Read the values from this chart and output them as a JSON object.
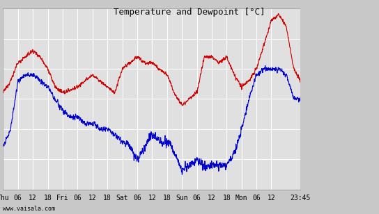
{
  "title": "Temperature and Dewpoint [°C]",
  "ylim": [
    -15,
    15
  ],
  "yticks": [
    -15,
    -10,
    -5,
    0,
    5,
    10,
    15
  ],
  "background_color": "#c8c8c8",
  "plot_bg_color": "#e0e0e0",
  "grid_color": "#ffffff",
  "temp_color": "#cc0000",
  "dewp_color": "#0000cc",
  "line_width": 0.8,
  "watermark": "www.vaisala.com",
  "x_tick_labels": [
    "Thu",
    "06",
    "12",
    "18",
    "Fri",
    "06",
    "12",
    "18",
    "Sat",
    "06",
    "12",
    "18",
    "Sun",
    "06",
    "12",
    "18",
    "Mon",
    "06",
    "12",
    "23:45"
  ],
  "x_tick_positions": [
    0,
    6,
    12,
    18,
    24,
    30,
    36,
    42,
    48,
    54,
    60,
    66,
    72,
    78,
    84,
    90,
    96,
    102,
    108,
    119.75
  ],
  "total_hours": 119.75,
  "font_size_title": 9,
  "font_size_ticks": 7,
  "font_size_watermark": 6,
  "temp_keypoints_x": [
    0,
    3,
    6,
    9,
    12,
    15,
    18,
    21,
    24,
    27,
    30,
    33,
    36,
    39,
    42,
    45,
    48,
    51,
    54,
    57,
    60,
    63,
    66,
    69,
    72,
    75,
    78,
    81,
    84,
    87,
    90,
    93,
    96,
    99,
    102,
    105,
    108,
    111,
    114,
    117,
    119.75
  ],
  "temp_keypoints_y": [
    1,
    3,
    6,
    7,
    8,
    7,
    5,
    2,
    1,
    1.5,
    2,
    3,
    4,
    3,
    2,
    1,
    5,
    6,
    7,
    6,
    6,
    5,
    4,
    1,
    -1,
    0,
    1,
    7,
    7,
    6,
    7,
    4,
    2,
    3,
    5,
    9,
    13,
    14,
    12,
    5,
    3
  ],
  "dewp_keypoints_x": [
    0,
    3,
    6,
    9,
    12,
    15,
    18,
    21,
    24,
    27,
    30,
    33,
    36,
    39,
    42,
    45,
    48,
    51,
    54,
    57,
    60,
    63,
    66,
    69,
    72,
    75,
    78,
    81,
    84,
    87,
    90,
    93,
    96,
    99,
    102,
    105,
    108,
    111,
    114,
    117,
    119.75
  ],
  "dewp_keypoints_y": [
    -8,
    -5,
    3,
    4,
    4,
    3,
    2,
    0,
    -2,
    -3,
    -3,
    -4,
    -4,
    -5,
    -5,
    -6,
    -7,
    -8,
    -10,
    -8,
    -6,
    -7,
    -7,
    -9,
    -12,
    -11,
    -10,
    -11,
    -11,
    -11,
    -11,
    -9,
    -5,
    0,
    4,
    5,
    5,
    5,
    4,
    0,
    0
  ]
}
